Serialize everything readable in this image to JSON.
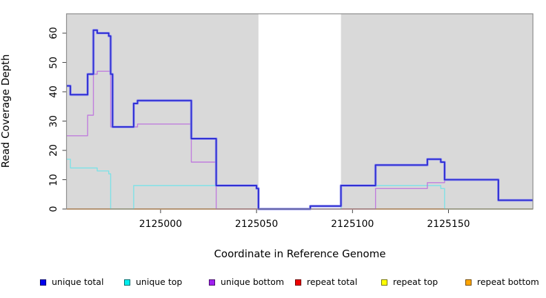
{
  "figure": {
    "y_axis_label": "Read Coverage Depth",
    "x_axis_label": "Coordinate in Reference Genome"
  },
  "chart_data": {
    "type": "line",
    "step": "after",
    "title": "",
    "xlabel": "Coordinate in Reference Genome",
    "ylabel": "Read Coverage Depth",
    "xlim": [
      2124951,
      2125194
    ],
    "ylim": [
      0,
      66.6
    ],
    "x_ticks": [
      2125000,
      2125050,
      2125100,
      2125150
    ],
    "y_ticks": [
      0,
      10,
      20,
      30,
      40,
      50,
      60
    ],
    "grid": false,
    "plot_bg": "#d9d9d9",
    "border_color": "#8a8a8a",
    "tick_color": "#3a3a3a",
    "highlight_band": {
      "x0": 2125051,
      "x1": 2125094,
      "color": "#ffffff"
    },
    "legend_position": "bottom",
    "paint_order": [
      4,
      3,
      5,
      1,
      2,
      0
    ],
    "series": [
      {
        "name": "unique total",
        "color": "#2f2fd3",
        "halo": "#9d9df0",
        "width": 2,
        "opacity": 1,
        "points": [
          [
            2124951,
            42
          ],
          [
            2124953,
            39
          ],
          [
            2124962,
            46
          ],
          [
            2124965,
            61
          ],
          [
            2124967,
            60
          ],
          [
            2124973,
            59
          ],
          [
            2124974,
            46
          ],
          [
            2124975,
            28
          ],
          [
            2124986,
            36
          ],
          [
            2124988,
            37
          ],
          [
            2125016,
            24
          ],
          [
            2125029,
            8
          ],
          [
            2125050,
            7
          ],
          [
            2125051,
            0
          ],
          [
            2125078,
            1
          ],
          [
            2125094,
            8
          ],
          [
            2125112,
            15
          ],
          [
            2125139,
            17
          ],
          [
            2125146,
            16
          ],
          [
            2125148,
            10
          ],
          [
            2125176,
            3
          ]
        ]
      },
      {
        "name": "unique top",
        "color": "#66e3ea",
        "halo": null,
        "width": 1.4,
        "opacity": 0.8,
        "points": [
          [
            2124951,
            17
          ],
          [
            2124953,
            14
          ],
          [
            2124967,
            13
          ],
          [
            2124973,
            12
          ],
          [
            2124974,
            0
          ],
          [
            2124986,
            8
          ],
          [
            2125050,
            7
          ],
          [
            2125051,
            0
          ],
          [
            2125094,
            8
          ],
          [
            2125146,
            7
          ],
          [
            2125148,
            0
          ]
        ]
      },
      {
        "name": "unique bottom",
        "color": "#bb6bdd",
        "halo": null,
        "width": 1.4,
        "opacity": 0.85,
        "points": [
          [
            2124951,
            25
          ],
          [
            2124962,
            32
          ],
          [
            2124965,
            46
          ],
          [
            2124967,
            47
          ],
          [
            2124974,
            28
          ],
          [
            2124988,
            29
          ],
          [
            2125016,
            16
          ],
          [
            2125029,
            0
          ],
          [
            2125112,
            7
          ],
          [
            2125139,
            9
          ],
          [
            2125148,
            10
          ],
          [
            2125176,
            3
          ]
        ]
      },
      {
        "name": "repeat total",
        "color": "#cc4455",
        "halo": null,
        "width": 1.4,
        "opacity": 1,
        "points": [
          [
            2124951,
            0
          ]
        ]
      },
      {
        "name": "repeat top",
        "color": "#eded2a",
        "halo": null,
        "width": 1.4,
        "opacity": 1,
        "points": [
          [
            2124951,
            0
          ]
        ]
      },
      {
        "name": "repeat bottom",
        "color": "#ff9d1c",
        "halo": null,
        "width": 1.6,
        "opacity": 1,
        "points": [
          [
            2124951,
            0
          ]
        ]
      }
    ]
  },
  "legend": {
    "items": [
      {
        "label": "unique total",
        "swatch": "#0000ee"
      },
      {
        "label": "unique top",
        "swatch": "#00eeee"
      },
      {
        "label": "unique bottom",
        "swatch": "#a020f0"
      },
      {
        "label": "repeat total",
        "swatch": "#ee0000"
      },
      {
        "label": "repeat top",
        "swatch": "#ffff00"
      },
      {
        "label": "repeat bottom",
        "swatch": "#ffa500"
      }
    ]
  }
}
